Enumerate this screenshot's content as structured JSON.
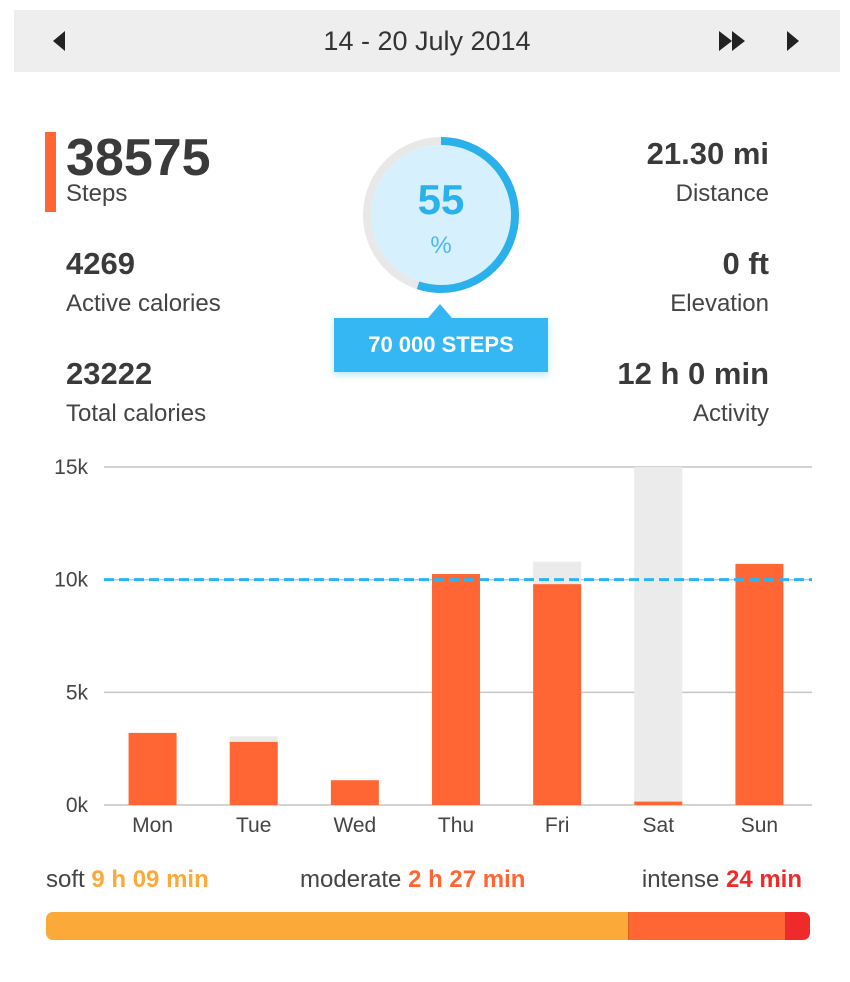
{
  "header": {
    "title": "14 - 20 July 2014",
    "prev_icon": "triangle-left-icon",
    "fast_forward_icon": "double-triangle-right-icon",
    "next_icon": "triangle-right-icon"
  },
  "stats": {
    "steps": {
      "value": "38575",
      "label": "Steps"
    },
    "active_calories": {
      "value": "4269",
      "label": "Active calories"
    },
    "total_calories": {
      "value": "23222",
      "label": "Total calories"
    },
    "distance": {
      "value": "21.30 mi",
      "label": "Distance"
    },
    "elevation": {
      "value": "0 ft",
      "label": "Elevation"
    },
    "activity": {
      "value": "12 h 0 min",
      "label": "Activity"
    }
  },
  "progress": {
    "percent": "55",
    "percent_value": 55,
    "unit": "%",
    "goal": "70 000 STEPS"
  },
  "colors": {
    "accent": "#ff6633",
    "ring": "#2ab0ea",
    "goal_line": "#29b4f5",
    "soft": "#fbaa3a",
    "moderate": "#ff6633",
    "intense": "#ee2a2a",
    "background_bar": "#ebebeb"
  },
  "chart_data": {
    "type": "bar",
    "categories": [
      "Mon",
      "Tue",
      "Wed",
      "Thu",
      "Fri",
      "Sat",
      "Sun"
    ],
    "series": [
      {
        "values": [
          3200,
          2800,
          1100,
          10250,
          9800,
          150,
          10700
        ]
      },
      {
        "values": [
          3200,
          3050,
          1100,
          10250,
          10800,
          15000,
          10700
        ]
      }
    ],
    "goal": 10000,
    "yticks": [
      "15k",
      "10k",
      "5k",
      "0k"
    ],
    "ytick_values": [
      15000,
      10000,
      5000,
      0
    ],
    "ylim": [
      0,
      15000
    ],
    "grid": true,
    "legend": "none"
  },
  "intensity": {
    "soft": {
      "label": "soft",
      "value": "9 h 09 min",
      "minutes": 549
    },
    "moderate": {
      "label": "moderate",
      "value": "2 h 27 min",
      "minutes": 147
    },
    "intense": {
      "label": "intense",
      "value": "24 min",
      "minutes": 24
    }
  }
}
